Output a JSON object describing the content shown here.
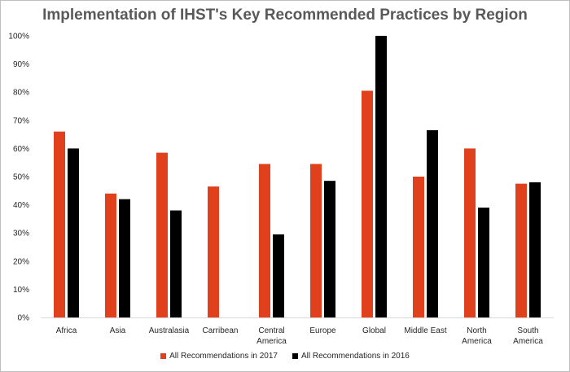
{
  "chart_data": {
    "type": "bar",
    "title": "Implementation of IHST's Key Recommended Practices by Region",
    "categories": [
      [
        "Africa"
      ],
      [
        "Asia"
      ],
      [
        "Australasia"
      ],
      [
        "Carribean"
      ],
      [
        "Central",
        "America"
      ],
      [
        "Europe"
      ],
      [
        "Global"
      ],
      [
        "Middle East"
      ],
      [
        "North",
        "America"
      ],
      [
        "South",
        "America"
      ]
    ],
    "series": [
      {
        "name": "All Recommendations in 2017",
        "color": "#e0401c",
        "values": [
          66,
          44,
          58.5,
          46.5,
          54.5,
          54.5,
          80.5,
          50,
          60,
          47.5
        ]
      },
      {
        "name": "All Recommendations in 2016",
        "color": "#000000",
        "values": [
          60,
          42,
          38,
          null,
          29.5,
          48.5,
          100,
          66.5,
          39,
          48
        ]
      }
    ],
    "ylim": [
      0,
      100
    ],
    "yticks": [
      "0%",
      "10%",
      "20%",
      "30%",
      "40%",
      "50%",
      "60%",
      "70%",
      "80%",
      "90%",
      "100%"
    ],
    "grid": false,
    "legend": "bottom"
  }
}
